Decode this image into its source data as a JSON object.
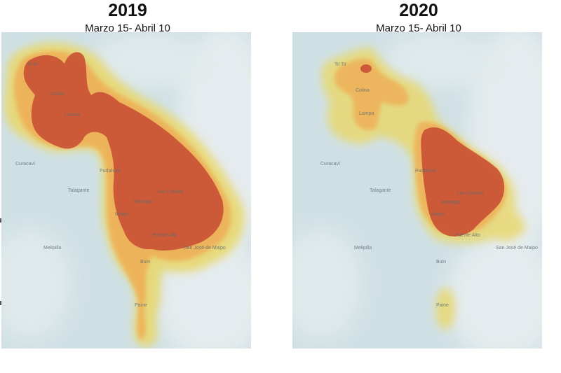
{
  "panels": [
    {
      "year": "2019",
      "date_range": "Marzo 15- Abril 10",
      "place_labels": [
        "Til Til",
        "Colina",
        "Lampa",
        "Pudahuel",
        "Maipú",
        "Las Condes",
        "Santiago",
        "Puente Alto",
        "Melipilla",
        "Talagante",
        "Buin",
        "San José de Maipo",
        "Paine",
        "Curacaví"
      ]
    },
    {
      "year": "2020",
      "date_range": "Marzo 15- Abril 10",
      "place_labels": [
        "Til Til",
        "Colina",
        "Lampa",
        "Pudahuel",
        "Maipú",
        "Las Condes",
        "Santiago",
        "Puente Alto",
        "Melipilla",
        "Talagante",
        "Buin",
        "San José de Maipo",
        "Paine",
        "Curacaví"
      ]
    }
  ],
  "colors": {
    "base": "#cfe0e4",
    "terrain": "#e6ecee",
    "low": "#e8d870",
    "medium": "#eeb25a",
    "high": "#c95235"
  }
}
